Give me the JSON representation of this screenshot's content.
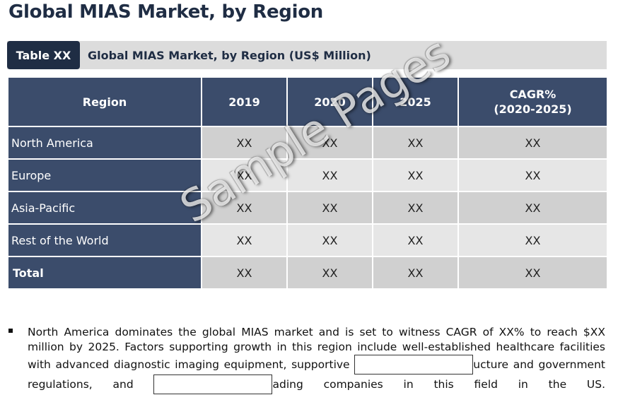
{
  "page": {
    "title": "Global MIAS Market, by Region"
  },
  "caption": {
    "tag": "Table XX",
    "text": "Global MIAS Market, by Region (US$ Million)"
  },
  "table": {
    "headers": [
      "Region",
      "2019",
      "2020",
      "2025",
      "CAGR%",
      "(2020-2025)"
    ],
    "rows": [
      {
        "region": "North America",
        "values": [
          "XX",
          "XX",
          "XX",
          "XX"
        ]
      },
      {
        "region": "Europe",
        "values": [
          "XX",
          "XX",
          "XX",
          "XX"
        ]
      },
      {
        "region": "Asia-Pacific",
        "values": [
          "XX",
          "XX",
          "XX",
          "XX"
        ]
      },
      {
        "region": "Rest of the World",
        "values": [
          "XX",
          "XX",
          "XX",
          "XX"
        ]
      },
      {
        "region": "Total",
        "values": [
          "XX",
          "XX",
          "XX",
          "XX"
        ]
      }
    ]
  },
  "watermark": "Sample Pages",
  "bullet": {
    "part1": "North America dominates the global MIAS market and is set to witness CAGR of XX% to reach $XX million by 2025. Factors supporting growth in this region include well-established healthcare facilities with advanced diagnostic imaging equipment, supportive",
    "part2": "ucture and government regulations, and",
    "part3": "ading companies in this field in the US."
  }
}
